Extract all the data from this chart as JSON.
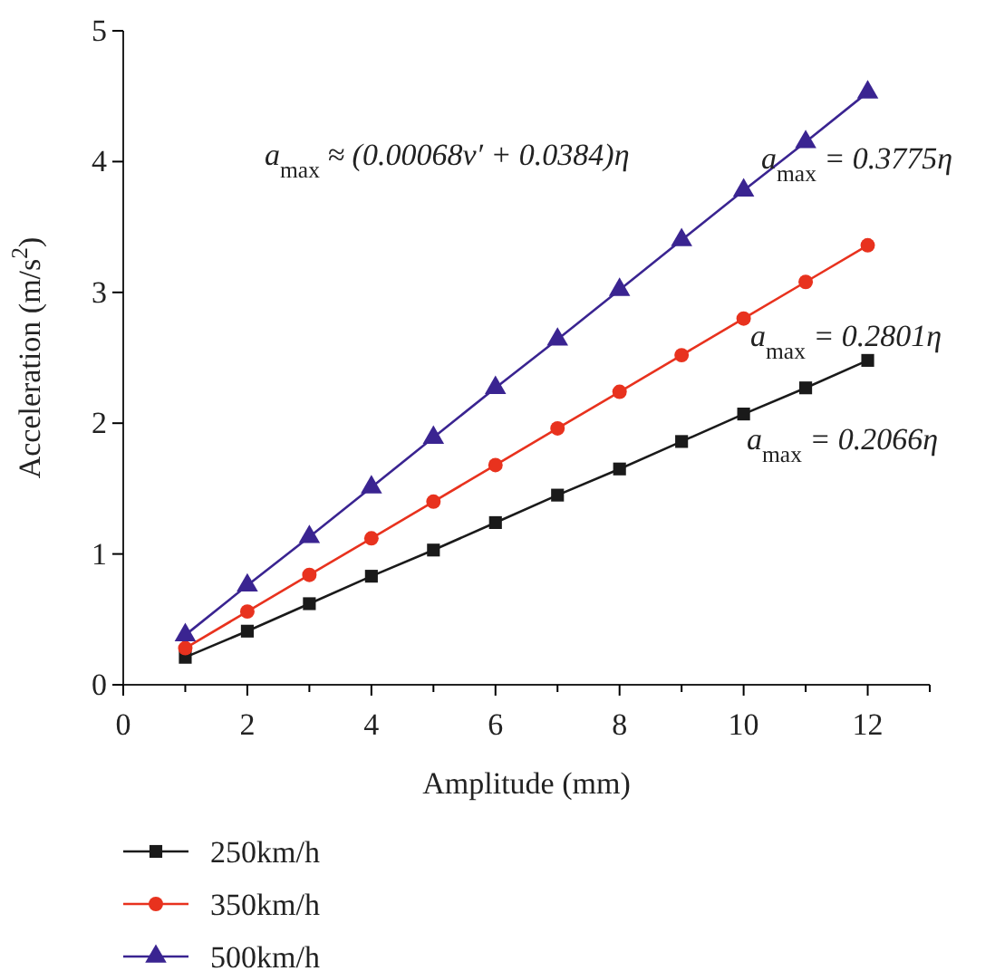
{
  "chart_data": {
    "type": "line",
    "xlabel": "Amplitude (mm)",
    "ylabel": "Acceleration (m/s$^{2}$)",
    "x": [
      1,
      2,
      3,
      4,
      5,
      6,
      7,
      8,
      9,
      10,
      11,
      12
    ],
    "series": [
      {
        "name": "250km/h",
        "color": "#1a1a1a",
        "marker": "square",
        "values": [
          0.21,
          0.41,
          0.62,
          0.83,
          1.03,
          1.24,
          1.45,
          1.65,
          1.86,
          2.07,
          2.27,
          2.48
        ]
      },
      {
        "name": "350km/h",
        "color": "#e8321e",
        "marker": "circle",
        "values": [
          0.28,
          0.56,
          0.84,
          1.12,
          1.4,
          1.68,
          1.96,
          2.24,
          2.52,
          2.8,
          3.08,
          3.36
        ]
      },
      {
        "name": "500km/h",
        "color": "#3a2491",
        "marker": "triangle",
        "values": [
          0.38,
          0.76,
          1.13,
          1.51,
          1.89,
          2.27,
          2.64,
          3.02,
          3.4,
          3.78,
          4.15,
          4.53
        ]
      }
    ],
    "xlim": [
      0,
      13
    ],
    "xticks": [
      0,
      {
        "value": 1,
        "label": null
      },
      2,
      {
        "value": 3,
        "label": null
      },
      4,
      {
        "value": 5,
        "label": null
      },
      6,
      {
        "value": 7,
        "label": null
      },
      8,
      {
        "value": 9,
        "label": null
      },
      10,
      {
        "value": 11,
        "label": null
      },
      12,
      {
        "value": 13,
        "label": null
      }
    ],
    "ylim": [
      0,
      5
    ],
    "yticks": [
      0,
      1,
      2,
      3,
      4,
      5
    ],
    "annotations": [
      "a$_{max}$ ≈ (0.00068v′ + 0.0384)η",
      "a$_{max}$ = 0.3775η",
      "a$_{max}$ = 0.2801η",
      "a$_{max}$ = 0.2066η"
    ],
    "legend": "bottom",
    "grid": false,
    "line_style": "solid"
  }
}
